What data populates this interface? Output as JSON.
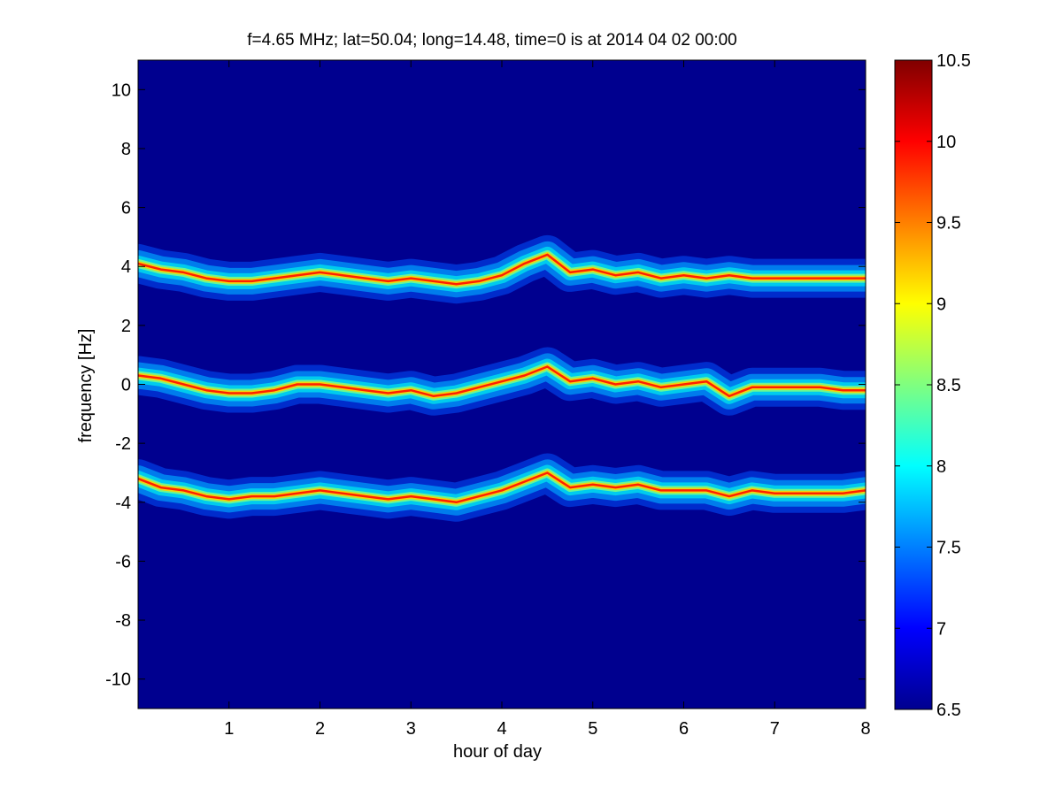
{
  "chart_data": {
    "type": "heatmap",
    "title": "f=4.65 MHz;  lat=50.04; long=14.48, time=0 is at 2014 04 02 00:00",
    "xlabel": "hour of day",
    "ylabel": "frequency [Hz]",
    "xlim": [
      0,
      8
    ],
    "ylim": [
      -11,
      11
    ],
    "x_ticks": [
      "1",
      "2",
      "3",
      "4",
      "5",
      "6",
      "7",
      "8"
    ],
    "y_ticks": [
      "-10",
      "-8",
      "-6",
      "-4",
      "-2",
      "0",
      "2",
      "4",
      "6",
      "8",
      "10"
    ],
    "colorbar": {
      "range": [
        6.5,
        10.5
      ],
      "ticks": [
        "6.5",
        "7",
        "7.5",
        "8",
        "8.5",
        "9",
        "9.5",
        "10",
        "10.5"
      ],
      "colormap": "jet"
    },
    "background_value": 6.5,
    "series": [
      {
        "x": [
          0,
          0.25,
          0.5,
          0.75,
          1,
          1.25,
          1.5,
          1.75,
          2,
          2.25,
          2.5,
          2.75,
          3,
          3.25,
          3.5,
          3.75,
          4,
          4.25,
          4.5,
          4.75,
          5,
          5.25,
          5.5,
          5.75,
          6,
          6.25,
          6.5,
          6.75,
          7,
          7.25,
          7.5,
          7.75,
          8
        ],
        "y": [
          4.1,
          3.9,
          3.8,
          3.6,
          3.5,
          3.5,
          3.6,
          3.7,
          3.8,
          3.7,
          3.6,
          3.5,
          3.6,
          3.5,
          3.4,
          3.5,
          3.7,
          4.1,
          4.4,
          3.8,
          3.9,
          3.7,
          3.8,
          3.6,
          3.7,
          3.6,
          3.7,
          3.6,
          3.6,
          3.6,
          3.6,
          3.6,
          3.6
        ]
      },
      {
        "x": [
          0,
          0.25,
          0.5,
          0.75,
          1,
          1.25,
          1.5,
          1.75,
          2,
          2.25,
          2.5,
          2.75,
          3,
          3.25,
          3.5,
          3.75,
          4,
          4.25,
          4.5,
          4.75,
          5,
          5.25,
          5.5,
          5.75,
          6,
          6.25,
          6.5,
          6.75,
          7,
          7.25,
          7.5,
          7.75,
          8
        ],
        "y": [
          0.3,
          0.2,
          0,
          -0.2,
          -0.3,
          -0.3,
          -0.2,
          0,
          0,
          -0.1,
          -0.2,
          -0.3,
          -0.2,
          -0.4,
          -0.3,
          -0.1,
          0.1,
          0.3,
          0.6,
          0.1,
          0.2,
          0,
          0.1,
          -0.1,
          0,
          0.1,
          -0.4,
          -0.1,
          -0.1,
          -0.1,
          -0.1,
          -0.2,
          -0.2
        ]
      },
      {
        "x": [
          0,
          0.25,
          0.5,
          0.75,
          1,
          1.25,
          1.5,
          1.75,
          2,
          2.25,
          2.5,
          2.75,
          3,
          3.25,
          3.5,
          3.75,
          4,
          4.25,
          4.5,
          4.75,
          5,
          5.25,
          5.5,
          5.75,
          6,
          6.25,
          6.5,
          6.75,
          7,
          7.25,
          7.5,
          7.75,
          8
        ],
        "y": [
          -3.2,
          -3.5,
          -3.6,
          -3.8,
          -3.9,
          -3.8,
          -3.8,
          -3.7,
          -3.6,
          -3.7,
          -3.8,
          -3.9,
          -3.8,
          -3.9,
          -4.0,
          -3.8,
          -3.6,
          -3.3,
          -3.0,
          -3.5,
          -3.4,
          -3.5,
          -3.4,
          -3.6,
          -3.6,
          -3.6,
          -3.8,
          -3.6,
          -3.7,
          -3.7,
          -3.7,
          -3.7,
          -3.6
        ]
      }
    ]
  }
}
